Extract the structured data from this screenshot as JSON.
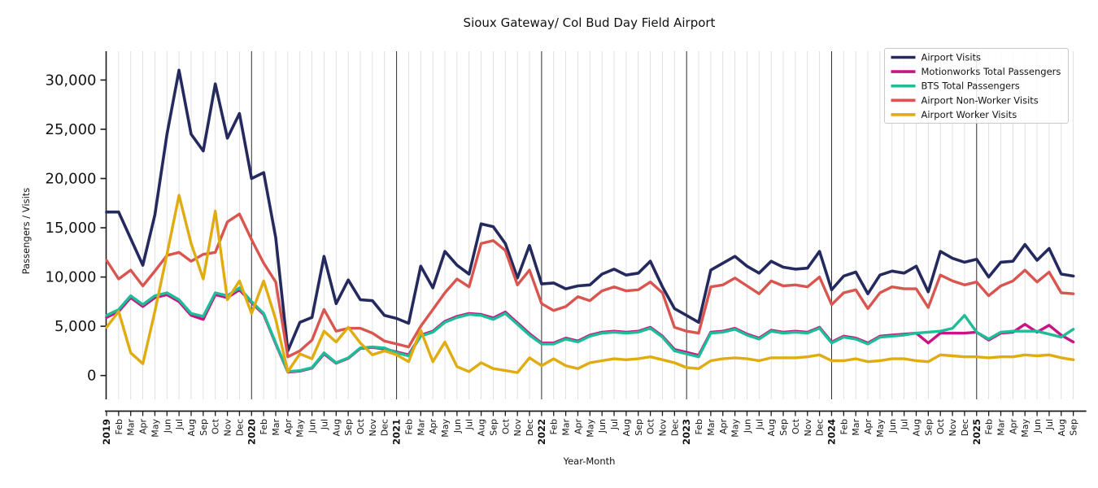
{
  "chart_data": {
    "type": "line",
    "title": "Sioux Gateway/ Col Bud Day Field Airport",
    "xlabel": "Year-Month",
    "ylabel": "Passengers / Visits",
    "legend_position": "upper right",
    "grid": {
      "vertical_monthly": true,
      "horizontal": false,
      "month_line_color": "#dcdcdc",
      "year_line_color": "#2e2e2e"
    },
    "ylim": [
      -2300,
      33000
    ],
    "y_ticks": [
      {
        "value": 0,
        "label": "0"
      },
      {
        "value": 5000,
        "label": "5,000"
      },
      {
        "value": 10000,
        "label": "10,000"
      },
      {
        "value": 15000,
        "label": "15,000"
      },
      {
        "value": 20000,
        "label": "20,000"
      },
      {
        "value": 25000,
        "label": "25,000"
      },
      {
        "value": 30000,
        "label": "30,000"
      }
    ],
    "x_tick_labels": [
      "2019",
      "Feb",
      "Mar",
      "Apr",
      "May",
      "Jun",
      "Jul",
      "Aug",
      "Sep",
      "Oct",
      "Nov",
      "Dec",
      "2020",
      "Feb",
      "Mar",
      "Apr",
      "May",
      "Jun",
      "Jul",
      "Aug",
      "Sep",
      "Oct",
      "Nov",
      "Dec",
      "2021",
      "Feb",
      "Mar",
      "Apr",
      "May",
      "Jun",
      "Jul",
      "Aug",
      "Sep",
      "Oct",
      "Nov",
      "Dec",
      "2022",
      "Feb",
      "Mar",
      "Apr",
      "May",
      "Jun",
      "Jul",
      "Aug",
      "Sep",
      "Oct",
      "Nov",
      "Dec",
      "2023",
      "Feb",
      "Mar",
      "Apr",
      "May",
      "Jun",
      "Jul",
      "Aug",
      "Sep",
      "Oct",
      "Nov",
      "Dec",
      "2024",
      "Feb",
      "Mar",
      "Apr",
      "May",
      "Jun",
      "Jul",
      "Aug",
      "Sep",
      "Oct",
      "Nov",
      "Dec",
      "2025",
      "Feb",
      "Mar",
      "Apr",
      "May",
      "Jun",
      "Jul",
      "Aug",
      "Sep"
    ],
    "series": [
      {
        "name": "Airport Visits",
        "color": "#252A5E",
        "width": 3.6,
        "values": [
          16600,
          16600,
          13900,
          11200,
          16300,
          24500,
          31000,
          24500,
          22800,
          29600,
          24100,
          26600,
          20000,
          20600,
          14000,
          2500,
          5400,
          5900,
          12100,
          7300,
          9700,
          7700,
          7600,
          6100,
          5800,
          5300,
          11100,
          8900,
          12600,
          11200,
          10300,
          15400,
          15100,
          13400,
          9900,
          13200,
          9300,
          9400,
          8800,
          9100,
          9200,
          10300,
          10800,
          10200,
          10400,
          11600,
          9000,
          6800,
          6100,
          5400,
          10700,
          11400,
          12100,
          11100,
          10400,
          11600,
          11000,
          10800,
          10900,
          12600,
          8700,
          10100,
          10500,
          8300,
          10200,
          10600,
          10400,
          11100,
          8500,
          12600,
          11900,
          11500,
          11800,
          10000,
          11500,
          11600,
          13300,
          11700,
          12900,
          10300,
          10100
        ]
      },
      {
        "name": "Motionworks Total Passengers",
        "color": "#C71585",
        "width": 3.4,
        "values": [
          5900,
          6500,
          7900,
          7000,
          7900,
          8200,
          7500,
          6100,
          5700,
          8200,
          7900,
          8700,
          7400,
          6200,
          3200,
          350,
          450,
          750,
          2200,
          1250,
          1750,
          2750,
          2850,
          2700,
          2400,
          2100,
          4100,
          4500,
          5500,
          6000,
          6300,
          6200,
          5850,
          6450,
          5350,
          4250,
          3300,
          3300,
          3800,
          3500,
          4100,
          4400,
          4500,
          4400,
          4500,
          4900,
          4000,
          2650,
          2350,
          2050,
          4400,
          4500,
          4800,
          4200,
          3800,
          4600,
          4400,
          4500,
          4400,
          4900,
          3400,
          4000,
          3800,
          3300,
          4000,
          4100,
          4200,
          4300,
          3300,
          4300,
          4300,
          4300,
          4400,
          3600,
          4300,
          4400,
          5200,
          4400,
          5100,
          4100,
          3400
        ]
      },
      {
        "name": "BTS Total Passengers",
        "color": "#1FBD97",
        "width": 3.4,
        "values": [
          6100,
          6700,
          8100,
          7200,
          8100,
          8400,
          7700,
          6300,
          6000,
          8400,
          8100,
          8900,
          7500,
          6300,
          3300,
          400,
          500,
          800,
          2300,
          1300,
          1800,
          2800,
          2900,
          2800,
          2300,
          2000,
          4000,
          4400,
          5400,
          5900,
          6200,
          6100,
          5700,
          6300,
          5200,
          4100,
          3200,
          3200,
          3700,
          3400,
          4000,
          4300,
          4400,
          4300,
          4400,
          4800,
          3900,
          2500,
          2200,
          1900,
          4300,
          4400,
          4700,
          4100,
          3700,
          4500,
          4300,
          4400,
          4300,
          4800,
          3300,
          3900,
          3700,
          3200,
          3900,
          4000,
          4100,
          4300,
          4400,
          4500,
          4800,
          6100,
          4400,
          3700,
          4400,
          4500,
          4500,
          4500,
          4200,
          3900,
          4700
        ]
      },
      {
        "name": "Airport Non-Worker Visits",
        "color": "#D8564F",
        "width": 3.4,
        "values": [
          11700,
          9800,
          10700,
          9100,
          10600,
          12200,
          12500,
          11600,
          12300,
          12500,
          15600,
          16400,
          13800,
          11400,
          9500,
          1900,
          2500,
          3600,
          6700,
          4500,
          4800,
          4800,
          4300,
          3500,
          3200,
          2900,
          5000,
          6700,
          8400,
          9800,
          9000,
          13400,
          13700,
          12700,
          9200,
          10700,
          7300,
          6600,
          7000,
          8000,
          7600,
          8600,
          9000,
          8600,
          8700,
          9500,
          8400,
          4900,
          4500,
          4300,
          9000,
          9200,
          9900,
          9100,
          8300,
          9600,
          9100,
          9200,
          9000,
          10000,
          7200,
          8400,
          8700,
          6800,
          8400,
          9000,
          8800,
          8800,
          6900,
          10200,
          9600,
          9200,
          9500,
          8100,
          9100,
          9600,
          10700,
          9500,
          10500,
          8400,
          8300
        ]
      },
      {
        "name": "Airport Worker Visits",
        "color": "#E0AC10",
        "width": 3.4,
        "values": [
          4900,
          6500,
          2300,
          1200,
          6500,
          12300,
          18300,
          13400,
          9800,
          16700,
          7700,
          9600,
          6300,
          9600,
          5700,
          400,
          2200,
          1700,
          4500,
          3400,
          4900,
          3300,
          2100,
          2500,
          2100,
          1400,
          4600,
          1400,
          3400,
          900,
          400,
          1300,
          700,
          500,
          300,
          1800,
          1000,
          1700,
          1000,
          700,
          1300,
          1500,
          1700,
          1600,
          1700,
          1900,
          1600,
          1300,
          800,
          700,
          1500,
          1700,
          1800,
          1700,
          1500,
          1800,
          1800,
          1800,
          1900,
          2100,
          1500,
          1500,
          1700,
          1400,
          1500,
          1700,
          1700,
          1500,
          1400,
          2100,
          2000,
          1900,
          1900,
          1800,
          1900,
          1900,
          2100,
          2000,
          2100,
          1800,
          1600
        ]
      }
    ]
  }
}
